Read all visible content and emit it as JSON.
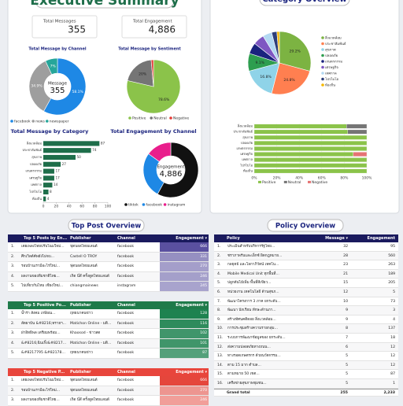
{
  "executive_summary": {
    "title": "Executive Summary",
    "kpis": [
      {
        "label": "Total Messages",
        "value": 355
      },
      {
        "label": "Total Engagement",
        "value": "4,886"
      }
    ]
  },
  "category_overview": {
    "title": "Category Overview"
  },
  "chart_data": [
    {
      "type": "donut",
      "title": "Total Message by Channel",
      "center_label": "Message",
      "center_value": 355,
      "categories": [
        "facebook",
        "news",
        "newspaper"
      ],
      "values": [
        58.1,
        34.9,
        7.0
      ],
      "value_labels": [
        "58.1%",
        "34.9%",
        "7%"
      ],
      "colors": [
        "#1e88e5",
        "#9e9e9e",
        "#26a69a"
      ],
      "legend": "bottom"
    },
    {
      "type": "pie",
      "title": "Total Message by Sentiment",
      "categories": [
        "Positive",
        "Neutral",
        "Negative"
      ],
      "values": [
        78.6,
        20,
        1.4
      ],
      "value_labels": [
        "78.6%",
        "20%",
        null
      ],
      "colors": [
        "#8bc34a",
        "#757575",
        "#e53935"
      ],
      "legend": "bottom"
    },
    {
      "type": "hbar",
      "title": "Total Message by Category",
      "categories": [
        "สิ่งแวดล้อม",
        "ประชาสัมพันธ์",
        "สุขภาพ",
        "ปลอดภัย",
        "เกษตรกรรม",
        "เศรษฐกิจ",
        "เทศกาล",
        "โปรไบโอ",
        "ท้องถิ่น"
      ],
      "values": [
        87,
        74,
        50,
        27,
        17,
        17,
        14,
        8,
        4
      ],
      "color": "#1e6e4a",
      "xlim": [
        0,
        100
      ],
      "xticks": [
        0,
        20,
        40,
        60,
        80,
        100
      ]
    },
    {
      "type": "donut",
      "title": "Total Engagement by Channel",
      "center_label": "Engagement",
      "center_value": "4,886",
      "categories": [
        "tiktok",
        "facebook",
        "instagram"
      ],
      "values": [
        2834,
        1319,
        733
      ],
      "colors": [
        "#111111",
        "#1e88e5",
        "#e91e8c"
      ],
      "legend": "bottom"
    },
    {
      "type": "pie",
      "categories": [
        "สิ่งแวดล้อม",
        "ประชาสัมพันธ์",
        "สุขภาพ",
        "ปลอดภัย",
        "เกษตรกรรม",
        "เศรษฐกิจ",
        "เทศกาล",
        "โปรไบโอ",
        "ท้องถิ่น"
      ],
      "values": [
        29.2,
        24.8,
        16.8,
        9.1,
        5.7,
        5.7,
        4.7,
        2.7,
        1.3
      ],
      "value_labels": [
        "29.2%",
        "24.8%",
        "16.8%",
        "9.1%",
        null,
        null,
        null,
        null,
        null
      ],
      "colors": [
        "#7cb342",
        "#ff7f50",
        "#8fd3e8",
        "#2e9e4f",
        "#1a237e",
        "#7e57c2",
        "#b3d9f2",
        "#2d3e7a",
        "#f5b800"
      ],
      "legend": "right"
    },
    {
      "type": "stacked_hbar",
      "categories": [
        "สิ่งแวดล้อม",
        "ประชาสัมพันธ์",
        "สุขภาพ",
        "ปลอดภัย",
        "เกษตรกรรม",
        "เศรษฐกิจ",
        "เทศกาล",
        "โปรไบโอ",
        "ท้องถิ่น"
      ],
      "series": [
        {
          "name": "Positive",
          "color": "#8bc34a",
          "values": [
            82,
            83,
            100,
            100,
            100,
            88,
            100,
            100,
            100
          ]
        },
        {
          "name": "Neutral",
          "color": "#757575",
          "values": [
            18,
            17,
            0,
            0,
            0,
            0,
            0,
            0,
            0
          ]
        },
        {
          "name": "Negative",
          "color": "#e57373",
          "values": [
            0,
            0,
            0,
            0,
            0,
            12,
            0,
            0,
            0
          ]
        }
      ],
      "xlim": [
        0,
        100
      ],
      "xticks": [
        {
          "value": 0,
          "label": "0%"
        },
        {
          "value": 20,
          "label": "20%"
        },
        {
          "value": 40,
          "label": "40%"
        },
        {
          "value": 60,
          "label": "60%"
        },
        {
          "value": 80,
          "label": "80%"
        },
        {
          "value": 100,
          "label": "100%"
        }
      ],
      "legend": "bottom"
    }
  ],
  "top_post_overview": {
    "title": "Top Post Overview",
    "tables": [
      {
        "columns": [
          "Top 5 Posts by En...",
          "Publisher",
          "Channel",
          "Engagement ▾"
        ],
        "rows": [
          [
            "1.",
            "เตยเพลงไทยปรับโฉมใหม่...",
            "ฟุตบอลไทยแลนด์",
            "facebook",
            666
          ],
          [
            "2.",
            "ศึกเวิลด์คัพยังไม่จบ...",
            "Castell O TROY",
            "facebook",
            331
          ],
          [
            "3.",
            "รอบบ้านเรามีอะไรใหม่...",
            "ฟุตบอลไทยแลนด์",
            "facebook",
            270
          ],
          [
            "4.",
            "ผลงานของทีมชาติไทย...",
            "เกิด นี่สี ครั้งดูดไทยแลนด์",
            "facebook",
            246
          ],
          [
            "5.",
            "ไปเที่ยวกันไหม เชียงใหม่...",
            "chiangmainews",
            "instagram",
            245
          ]
        ]
      },
      {
        "columns": [
          "Top 5 Positive Po...",
          "Publisher",
          "Channel",
          "Engagement ▾"
        ],
        "rows": [
          [
            "1.",
            "น้ำร่า สังคม เกษียณ...",
            "ฤทธนาคนข่าว",
            "facebook",
            128
          ],
          [
            "2.",
            "สัตยาบัน &#8216;ทรายฯ...",
            "Matichon Online - มติ...",
            "facebook",
            116
          ],
          [
            "3.",
            "ฝ่าอิทธิพล เตรียมพร้อม...",
            "Khaosod - ข่าวสด",
            "facebook",
            102
          ],
          [
            "4.",
            "&#8216;ฉินเกิ้ง&#8217;...",
            "Matichon Online - มติ...",
            "facebook",
            101
          ],
          [
            "5.",
            "&#8217795 &#8217800...",
            "ฤทธนาคนข่าว",
            "facebook",
            87
          ]
        ]
      },
      {
        "columns": [
          "Top 5 Negative P...",
          "Publisher",
          "Channel",
          "Engagement ▾"
        ],
        "rows": [
          [
            "1.",
            "เตยเพลงไทยปรับโฉมใหม่...",
            "ฟุตบอลไทยแลนด์",
            "facebook",
            666
          ],
          [
            "2.",
            "รอบบ้านเรามีอะไรใหม่...",
            "ฟุตบอลไทยแลนด์",
            "facebook",
            270
          ],
          [
            "3.",
            "ผลงานของทีมชาติไทย...",
            "เกิด นี่สี ครั้งดูดไทยแลนด์",
            "facebook",
            246
          ]
        ]
      }
    ]
  },
  "policy_overview": {
    "title": "Policy Overview",
    "columns": [
      "Policy",
      "Message ▾",
      "Engagement"
    ],
    "rows": [
      [
        "1.",
        "ประเมินสำหรับบริหารรัฐไทย...",
        32,
        95
      ],
      [
        "2.",
        "ชราภาพรับและเอ็กซ์ ผิดกฎหมาย...",
        28,
        560
      ],
      [
        "3.",
        "กลยุทธ์ และโลกาภิวัตน์ เทคโน...",
        23,
        263
      ],
      [
        "4.",
        "Mobile Medical Unit ทุกพื้นที่...",
        21,
        189
      ],
      [
        "5.",
        "ปลูกต้นไม้เพิ่ม พื้นที่สีเขียว...",
        15,
        205
      ],
      [
        "6.",
        "หน่วยงาน เทคโนโลยี ด้านสุขภ...",
        12,
        5
      ],
      [
        "7.",
        "พัฒนาโครงการ 3 ภาค ยกระดับ...",
        10,
        73
      ],
      [
        "8.",
        "พัฒนา นักเรียน ทักษะด้านภา...",
        9,
        3
      ],
      [
        "9.",
        "สร้างทัศนคติดอย สิ่งแวดล้อม...",
        9,
        4
      ],
      [
        "10.",
        "การประชุมสร้างความรายกลุ่ม...",
        8,
        137
      ],
      [
        "11.",
        "ระบบการพัฒนาข้อมูลของ ยกระดับ...",
        7,
        18
      ],
      [
        "12.",
        "ส่งความปลอดภัยทางถนน...",
        6,
        12
      ],
      [
        "13.",
        "ทางรอดเกษตรกร ด้วยนวัตกรรม...",
        5,
        12
      ],
      [
        "14.",
        "ตาม 15 มาก ตำบล...",
        5,
        12
      ],
      [
        "15.",
        "ตามหมาย 50 เขต...",
        5,
        87
      ],
      [
        "16.",
        "เครือข่ายสุขภาพชุมชน...",
        5,
        1
      ]
    ],
    "total": [
      "Grand total",
      255,
      "2,233"
    ]
  }
}
